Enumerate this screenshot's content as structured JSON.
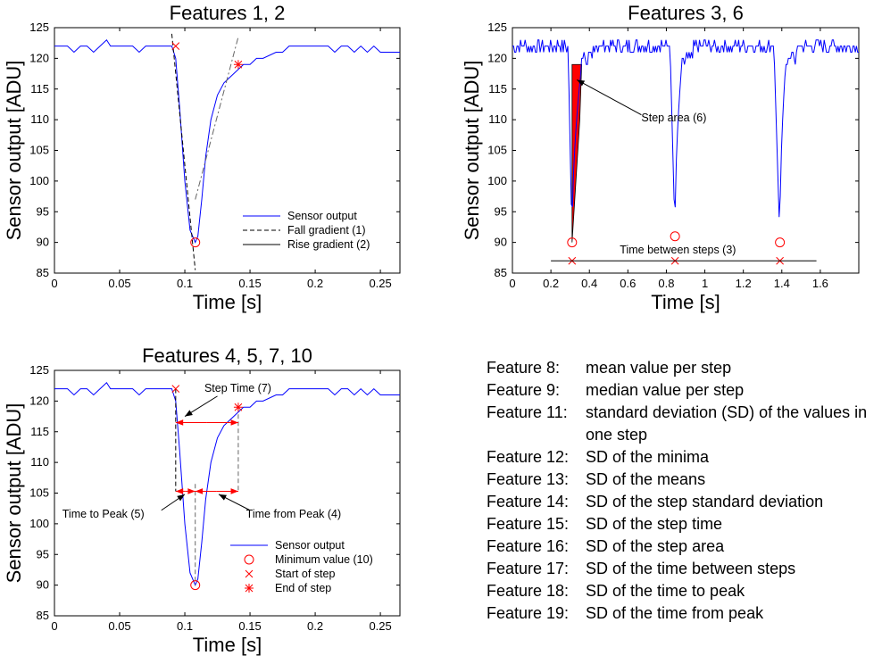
{
  "colors": {
    "signal": "#0000ff",
    "marker": "#ff0000",
    "axis": "#000000",
    "fit": "#666666"
  },
  "chart_data": [
    {
      "id": "top-left",
      "type": "line",
      "title": "Features 1, 2",
      "xlabel": "Time [s]",
      "ylabel": "Sensor output [ADU]",
      "xlim": [
        0,
        0.265
      ],
      "ylim": [
        85,
        125
      ],
      "xticks": [
        0,
        0.05,
        0.1,
        0.15,
        0.2,
        0.25
      ],
      "xtick_labels": [
        "0",
        "0.05",
        "0.1",
        "0.15",
        "0.2",
        "0.25"
      ],
      "yticks": [
        85,
        90,
        95,
        100,
        105,
        110,
        115,
        120,
        125
      ],
      "grid": false,
      "legend_position": "lower-right",
      "series": [
        {
          "name": "Sensor output",
          "style": "solid-blue",
          "x": [
            0,
            0.01,
            0.015,
            0.02,
            0.025,
            0.03,
            0.035,
            0.04,
            0.043,
            0.046,
            0.05,
            0.055,
            0.06,
            0.065,
            0.07,
            0.075,
            0.08,
            0.085,
            0.09,
            0.093,
            0.096,
            0.1,
            0.104,
            0.108,
            0.11,
            0.113,
            0.116,
            0.12,
            0.125,
            0.13,
            0.135,
            0.14,
            0.145,
            0.15,
            0.155,
            0.16,
            0.17,
            0.175,
            0.18,
            0.19,
            0.2,
            0.21,
            0.215,
            0.22,
            0.225,
            0.23,
            0.235,
            0.24,
            0.245,
            0.25,
            0.255,
            0.26,
            0.265
          ],
          "y": [
            122,
            122,
            121,
            122,
            122,
            121,
            122,
            123,
            122,
            122,
            122,
            122,
            122,
            121,
            122,
            122,
            122,
            122,
            122,
            120,
            112,
            100,
            92,
            90,
            91,
            97,
            104,
            110,
            114,
            116,
            117,
            118,
            119,
            119,
            120,
            120,
            121,
            121,
            122,
            122,
            122,
            122,
            121,
            122,
            122,
            121,
            122,
            121,
            122,
            121,
            121,
            121,
            121
          ]
        },
        {
          "name": "Fall gradient (1)",
          "style": "dashed-black",
          "x": [
            0.09,
            0.108
          ],
          "y": [
            124,
            85.5
          ]
        },
        {
          "name": "Rise gradient (2)",
          "style": "dashdot-grey",
          "x": [
            0.108,
            0.141
          ],
          "y": [
            97,
            123.5
          ]
        }
      ],
      "markers": [
        {
          "kind": "cross",
          "x": 0.093,
          "y": 122
        },
        {
          "kind": "circle",
          "x": 0.108,
          "y": 90
        },
        {
          "kind": "star",
          "x": 0.141,
          "y": 119
        }
      ]
    },
    {
      "id": "top-right",
      "type": "line",
      "title": "Features 3, 6",
      "xlabel": "Time [s]",
      "ylabel": "Sensor output [ADU]",
      "xlim": [
        0,
        1.8
      ],
      "ylim": [
        85,
        125
      ],
      "xticks": [
        0,
        0.2,
        0.4,
        0.6,
        0.8,
        1,
        1.2,
        1.4,
        1.6
      ],
      "xtick_labels": [
        "0",
        "0.2",
        "0.4",
        "0.6",
        "0.8",
        "1",
        "1.2",
        "1.4",
        "1.6"
      ],
      "yticks": [
        85,
        90,
        95,
        100,
        105,
        110,
        115,
        120,
        125
      ],
      "grid": false,
      "steps": [
        {
          "start": 0.29,
          "min_t": 0.31,
          "min": 90,
          "end": 0.36
        },
        {
          "start": 0.82,
          "min_t": 0.845,
          "min": 91,
          "end": 0.88
        },
        {
          "start": 1.36,
          "min_t": 1.39,
          "min": 90,
          "end": 1.42
        }
      ],
      "baseline": [
        121,
        123
      ],
      "filled_area": {
        "x": [
          0.31,
          0.31,
          0.335,
          0.36,
          0.35
        ],
        "y": [
          90,
          119,
          119,
          119,
          110
        ]
      },
      "markers": [
        {
          "kind": "circle",
          "x": 0.31,
          "y": 90
        },
        {
          "kind": "circle",
          "x": 0.845,
          "y": 91
        },
        {
          "kind": "circle",
          "x": 1.39,
          "y": 90
        },
        {
          "kind": "cross",
          "x": 0.31,
          "y": 87
        },
        {
          "kind": "cross",
          "x": 0.845,
          "y": 87
        },
        {
          "kind": "cross",
          "x": 1.39,
          "y": 87
        }
      ],
      "hline": {
        "x": [
          0.2,
          1.58
        ],
        "y": 87
      },
      "annotations": [
        {
          "text": "Step area (6)",
          "x": 0.67,
          "y": 109.7
        },
        {
          "text": "Time between steps (3)",
          "x": 0.86,
          "y": 88.2
        }
      ]
    },
    {
      "id": "bottom-left",
      "type": "line",
      "title": "Features 4, 5, 7, 10",
      "xlabel": "Time [s]",
      "ylabel": "Sensor output [ADU]",
      "xlim": [
        0,
        0.265
      ],
      "ylim": [
        85,
        125
      ],
      "xticks": [
        0,
        0.05,
        0.1,
        0.15,
        0.2,
        0.25
      ],
      "xtick_labels": [
        "0",
        "0.05",
        "0.1",
        "0.15",
        "0.2",
        "0.25"
      ],
      "yticks": [
        85,
        90,
        95,
        100,
        105,
        110,
        115,
        120,
        125
      ],
      "grid": false,
      "legend_position": "lower-right",
      "legend": [
        "Sensor output",
        "Minimum value (10)",
        "Start of step",
        "End of step"
      ],
      "annotations": [
        {
          "text": "Step Time (7)",
          "x": 0.115,
          "y": 121.5
        },
        {
          "text": "Time to Peak (5)",
          "x": 0.006,
          "y": 101
        },
        {
          "text": "Time from Peak (4)",
          "x": 0.147,
          "y": 101
        }
      ],
      "intervals": [
        {
          "label": "Step Time (7)",
          "x": [
            0.093,
            0.141
          ],
          "y": 116.5
        },
        {
          "label": "Time to Peak (5)",
          "x": [
            0.093,
            0.108
          ],
          "y": 105.3
        },
        {
          "label": "Time from Peak (4)",
          "x": [
            0.108,
            0.141
          ],
          "y": 105.3
        }
      ]
    }
  ],
  "feature_list": [
    {
      "label": "Feature 8:",
      "desc": "mean value per step"
    },
    {
      "label": "Feature 9:",
      "desc": "median value per step"
    },
    {
      "label": "Feature 11:",
      "desc": "standard deviation (SD) of the values in one step"
    },
    {
      "label": "Feature 12:",
      "desc": "SD of the minima"
    },
    {
      "label": "Feature 13:",
      "desc": "SD of the means"
    },
    {
      "label": "Feature 14:",
      "desc": "SD of the step standard deviation"
    },
    {
      "label": "Feature 15:",
      "desc": "SD of the step time"
    },
    {
      "label": "Feature 16:",
      "desc": "SD of the step area"
    },
    {
      "label": "Feature 17:",
      "desc": "SD of the time between steps"
    },
    {
      "label": "Feature 18:",
      "desc": "SD of the time to peak"
    },
    {
      "label": "Feature 19:",
      "desc": "SD of the time from peak"
    }
  ]
}
